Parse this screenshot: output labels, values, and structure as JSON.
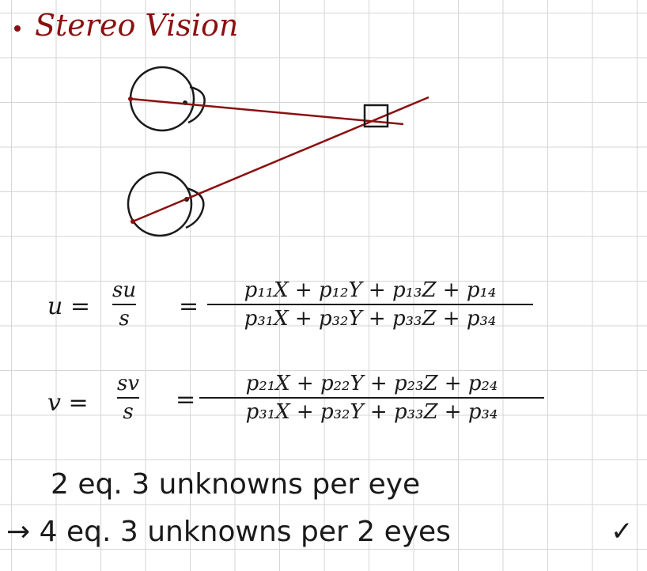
{
  "title": "Stereo Vision",
  "equations": {
    "u": {
      "lhs": "u =",
      "mid_num": "su",
      "mid_den": "s",
      "eq_sign": "=",
      "num": "p₁₁X + p₁₂Y + p₁₃Z + p₁₄",
      "den": "p₃₁X + p₃₂Y + p₃₃Z + p₃₄"
    },
    "v": {
      "lhs": "v =",
      "mid_num": "sv",
      "mid_den": "s",
      "eq_sign": "=",
      "num": "p₂₁X + p₂₂Y + p₂₃Z + p₂₄",
      "den": "p₃₁X + p₃₂Y + p₃₃Z + p₃₄"
    }
  },
  "notes": {
    "line1": "2 eq. 3 unknowns per eye",
    "line2": "→ 4 eq. 3 unknowns per 2 eyes",
    "check": "✓"
  },
  "colors": {
    "ink": "#1a1a1a",
    "red_ink": "#8b1010",
    "grid": "#d6d6d6"
  }
}
